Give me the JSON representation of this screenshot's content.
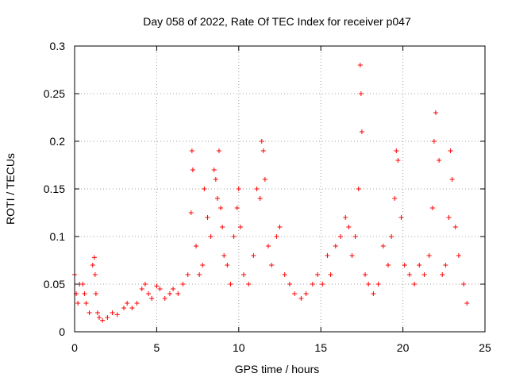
{
  "chart_data": {
    "type": "scatter",
    "title": "Day 058 of 2022, Rate Of TEC Index for receiver p047",
    "xlabel": "GPS time / hours",
    "ylabel": "ROTI / TECUs",
    "xlim": [
      0,
      25
    ],
    "ylim": [
      0,
      0.3
    ],
    "xticks": [
      "0",
      "5",
      "10",
      "15",
      "20",
      "25"
    ],
    "yticks": [
      "0",
      "0.05",
      "0.1",
      "0.15",
      "0.2",
      "0.25",
      "0.3"
    ],
    "grid": true,
    "marker": "+",
    "color": "#ff0000",
    "series": [
      {
        "name": "ROTI",
        "x": [
          0.0,
          0.1,
          0.2,
          0.3,
          0.5,
          0.6,
          0.7,
          0.9,
          1.1,
          1.2,
          1.25,
          1.3,
          1.4,
          1.5,
          1.7,
          2.0,
          2.3,
          2.6,
          3.0,
          3.2,
          3.5,
          3.8,
          4.1,
          4.3,
          4.5,
          4.7,
          5.0,
          5.2,
          5.5,
          5.8,
          6.0,
          6.3,
          6.6,
          6.9,
          7.1,
          7.15,
          7.2,
          7.4,
          7.6,
          7.8,
          7.9,
          8.1,
          8.3,
          8.5,
          8.6,
          8.7,
          8.8,
          8.9,
          9.0,
          9.1,
          9.3,
          9.5,
          9.7,
          9.9,
          10.0,
          10.1,
          10.3,
          10.6,
          10.9,
          11.1,
          11.3,
          11.4,
          11.5,
          11.6,
          11.8,
          12.0,
          12.3,
          12.5,
          12.8,
          13.1,
          13.4,
          13.8,
          14.1,
          14.5,
          14.8,
          15.1,
          15.4,
          15.6,
          15.9,
          16.2,
          16.5,
          16.7,
          16.9,
          17.1,
          17.3,
          17.4,
          17.45,
          17.5,
          17.7,
          17.9,
          18.2,
          18.5,
          18.8,
          19.1,
          19.3,
          19.5,
          19.6,
          19.7,
          19.9,
          20.1,
          20.4,
          20.7,
          21.0,
          21.3,
          21.6,
          21.8,
          21.9,
          22.0,
          22.2,
          22.4,
          22.6,
          22.8,
          22.9,
          23.0,
          23.2,
          23.4,
          23.7,
          23.9
        ],
        "y": [
          0.06,
          0.04,
          0.03,
          0.05,
          0.05,
          0.04,
          0.03,
          0.02,
          0.07,
          0.078,
          0.06,
          0.04,
          0.02,
          0.015,
          0.012,
          0.015,
          0.02,
          0.018,
          0.025,
          0.03,
          0.025,
          0.03,
          0.045,
          0.05,
          0.04,
          0.035,
          0.048,
          0.045,
          0.035,
          0.04,
          0.045,
          0.04,
          0.05,
          0.06,
          0.125,
          0.19,
          0.17,
          0.09,
          0.06,
          0.07,
          0.15,
          0.12,
          0.1,
          0.17,
          0.16,
          0.14,
          0.19,
          0.13,
          0.11,
          0.08,
          0.07,
          0.05,
          0.1,
          0.13,
          0.15,
          0.11,
          0.06,
          0.05,
          0.08,
          0.15,
          0.14,
          0.2,
          0.19,
          0.16,
          0.09,
          0.07,
          0.1,
          0.11,
          0.06,
          0.05,
          0.04,
          0.035,
          0.04,
          0.05,
          0.06,
          0.05,
          0.08,
          0.06,
          0.09,
          0.1,
          0.12,
          0.11,
          0.08,
          0.1,
          0.15,
          0.28,
          0.25,
          0.21,
          0.06,
          0.05,
          0.04,
          0.05,
          0.09,
          0.07,
          0.1,
          0.14,
          0.19,
          0.18,
          0.12,
          0.07,
          0.06,
          0.05,
          0.07,
          0.06,
          0.08,
          0.13,
          0.2,
          0.23,
          0.18,
          0.06,
          0.07,
          0.12,
          0.19,
          0.16,
          0.11,
          0.08,
          0.05,
          0.03
        ]
      }
    ]
  }
}
